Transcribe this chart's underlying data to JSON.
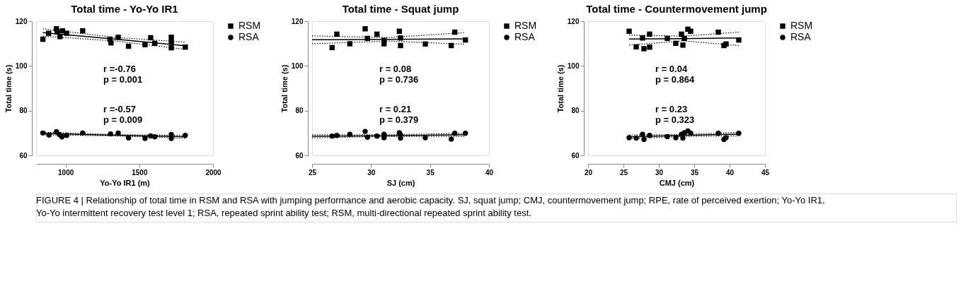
{
  "chart_data": [
    {
      "type": "scatter",
      "title": "Total time - Yo-Yo IR1",
      "xlabel": "Yo-Yo IR1 (m)",
      "ylabel": "Total time (s)",
      "xlim": [
        800,
        2000
      ],
      "xticks": [
        1000,
        1500,
        2000
      ],
      "ylim": [
        60,
        120
      ],
      "yticks": [
        60,
        80,
        100,
        120
      ],
      "grid": false,
      "legend": "right",
      "annotations": [
        "r =-0.76\np = 0.001",
        "r =-0.57\np = 0.009"
      ],
      "series": [
        {
          "name": "RSM",
          "color": "#000000",
          "marker": "square",
          "x": [
            846,
            885,
            938,
            944,
            962,
            979,
            1007,
            1116,
            1301,
            1308,
            1357,
            1427,
            1539,
            1577,
            1605,
            1717,
            1717,
            1717,
            1812
          ],
          "values": [
            111.9,
            114.6,
            116.6,
            115.2,
            113.1,
            115.7,
            114.6,
            115.7,
            111.9,
            110.3,
            112.8,
            108.8,
            109.5,
            112.6,
            110.1,
            112.8,
            110.6,
            108.1,
            108.4
          ]
        },
        {
          "name": "RSA",
          "color": "#000000",
          "marker": "circle",
          "x": [
            846,
            888,
            938,
            958,
            975,
            1007,
            1116,
            1305,
            1357,
            1427,
            1539,
            1577,
            1605,
            1717,
            1717,
            1812
          ],
          "values": [
            70.0,
            69.1,
            70.6,
            69.3,
            68.3,
            68.9,
            70.0,
            69.6,
            70.0,
            67.8,
            67.6,
            68.7,
            68.3,
            69.3,
            67.6,
            68.9
          ]
        },
        {
          "type": "line",
          "color": "#000000",
          "line_style": "solid",
          "x": [
            846,
            1329,
            1812
          ],
          "values": [
            114.9,
            112.0,
            109.0
          ]
        },
        {
          "type": "line",
          "color": "#000000",
          "line_style": "dotted",
          "x": [
            846,
            1329,
            1812
          ],
          "values": [
            113.3,
            111.2,
            107.4
          ]
        },
        {
          "type": "line",
          "color": "#000000",
          "line_style": "dotted",
          "x": [
            846,
            1329,
            1812
          ],
          "values": [
            116.6,
            112.8,
            110.6
          ]
        },
        {
          "type": "line",
          "color": "#000000",
          "line_style": "solid",
          "x": [
            846,
            1329,
            1812
          ],
          "values": [
            69.8,
            69.0,
            68.3
          ]
        },
        {
          "type": "line",
          "color": "#000000",
          "line_style": "dotted",
          "x": [
            846,
            1329,
            1812
          ],
          "values": [
            69.2,
            68.7,
            67.7
          ]
        },
        {
          "type": "line",
          "color": "#000000",
          "line_style": "dotted",
          "x": [
            846,
            1329,
            1812
          ],
          "values": [
            70.4,
            69.3,
            68.9
          ]
        }
      ]
    },
    {
      "type": "scatter",
      "title": "Total time - Squat jump",
      "xlabel": "SJ (cm)",
      "ylabel": "Total time (s)",
      "xlim": [
        25,
        40
      ],
      "xticks": [
        25,
        30,
        35,
        40
      ],
      "ylim": [
        60,
        120
      ],
      "yticks": [
        60,
        80,
        100,
        120
      ],
      "grid": false,
      "legend": "right",
      "annotations": [
        "r = 0.08\np = 0.736",
        "r = 0.21\np = 0.379"
      ],
      "series": [
        {
          "name": "RSM",
          "color": "#000000",
          "marker": "square",
          "x": [
            26.7,
            27.1,
            28.2,
            29.5,
            29.7,
            30.5,
            31.1,
            31.1,
            32.4,
            32.5,
            32.5,
            34.6,
            36.8,
            37.1,
            38.0
          ],
          "values": [
            108.2,
            114.2,
            109.9,
            116.6,
            112.3,
            114.2,
            111.4,
            109.9,
            115.5,
            112.5,
            109.1,
            109.8,
            109.1,
            115.1,
            111.6
          ]
        },
        {
          "name": "RSA",
          "color": "#000000",
          "marker": "circle",
          "x": [
            26.7,
            27.1,
            28.2,
            29.5,
            29.7,
            30.5,
            31.1,
            31.1,
            32.4,
            32.5,
            32.5,
            34.6,
            36.8,
            37.1,
            38.0
          ],
          "values": [
            68.6,
            68.9,
            69.4,
            70.7,
            68.1,
            68.6,
            69.4,
            67.9,
            70.1,
            69.2,
            67.7,
            67.9,
            67.3,
            69.9,
            69.9
          ]
        },
        {
          "type": "line",
          "color": "#000000",
          "line_style": "solid",
          "x": [
            25,
            31.5,
            38
          ],
          "values": [
            111.7,
            111.9,
            112.1
          ]
        },
        {
          "type": "line",
          "color": "#000000",
          "line_style": "dotted",
          "x": [
            25,
            31.5,
            38
          ],
          "values": [
            109.9,
            111.1,
            109.7
          ]
        },
        {
          "type": "line",
          "color": "#000000",
          "line_style": "dotted",
          "x": [
            25,
            31.5,
            38
          ],
          "values": [
            113.4,
            112.7,
            114.9
          ]
        },
        {
          "type": "line",
          "color": "#000000",
          "line_style": "solid",
          "x": [
            25,
            31.5,
            38
          ],
          "values": [
            68.5,
            68.8,
            69.2
          ]
        },
        {
          "type": "line",
          "color": "#000000",
          "line_style": "dotted",
          "x": [
            25,
            31.5,
            38
          ],
          "values": [
            67.8,
            68.5,
            68.5
          ]
        },
        {
          "type": "line",
          "color": "#000000",
          "line_style": "dotted",
          "x": [
            25,
            31.5,
            38
          ],
          "values": [
            69.2,
            69.2,
            69.9
          ]
        }
      ]
    },
    {
      "type": "scatter",
      "title": "Total time - Countermovement jump",
      "xlabel": "CMJ (cm)",
      "ylabel": "Total time (s)",
      "xlim": [
        20,
        45
      ],
      "xticks": [
        20,
        25,
        30,
        35,
        40,
        45
      ],
      "ylim": [
        60,
        120
      ],
      "yticks": [
        60,
        80,
        100,
        120
      ],
      "grid": false,
      "legend": "right",
      "annotations": [
        "r = 0.04\np = 0.864",
        "r = 0.23\np = 0.323"
      ],
      "series": [
        {
          "name": "RSM",
          "color": "#000000",
          "marker": "square",
          "x": [
            25.8,
            26.8,
            27.7,
            27.9,
            28.7,
            28.7,
            31.2,
            32.4,
            33.2,
            33.4,
            33.6,
            34.1,
            34.5,
            38.4,
            39.2,
            39.5,
            41.3
          ],
          "values": [
            115.5,
            108.5,
            112.5,
            107.7,
            114.2,
            108.4,
            112.3,
            110.1,
            114.2,
            109.3,
            112.3,
            116.4,
            115.5,
            115.1,
            109.1,
            109.8,
            111.6
          ]
        },
        {
          "name": "RSA",
          "color": "#000000",
          "marker": "circle",
          "x": [
            25.8,
            26.8,
            27.7,
            27.9,
            28.7,
            31.2,
            32.4,
            33.2,
            33.4,
            33.6,
            34.1,
            34.5,
            38.4,
            39.2,
            39.5,
            41.3
          ],
          "values": [
            67.9,
            67.7,
            69.4,
            67.1,
            68.9,
            68.4,
            67.9,
            69.4,
            67.7,
            70.1,
            70.9,
            69.9,
            69.9,
            67.1,
            67.9,
            69.9
          ]
        },
        {
          "type": "line",
          "color": "#000000",
          "line_style": "solid",
          "x": [
            25.8,
            33.5,
            41.3
          ],
          "values": [
            112.0,
            112.2,
            112.5
          ]
        },
        {
          "type": "line",
          "color": "#000000",
          "line_style": "dotted",
          "x": [
            25.8,
            33.5,
            41.3
          ],
          "values": [
            109.3,
            111.2,
            109.1
          ]
        },
        {
          "type": "line",
          "color": "#000000",
          "line_style": "dotted",
          "x": [
            25.8,
            33.5,
            41.3
          ],
          "values": [
            113.8,
            113.3,
            115.1
          ]
        },
        {
          "type": "line",
          "color": "#000000",
          "line_style": "solid",
          "x": [
            25.8,
            33.5,
            41.3
          ],
          "values": [
            68.3,
            68.9,
            69.5
          ]
        },
        {
          "type": "line",
          "color": "#000000",
          "line_style": "dotted",
          "x": [
            25.8,
            33.5,
            41.3
          ],
          "values": [
            67.5,
            68.5,
            68.7
          ]
        },
        {
          "type": "line",
          "color": "#000000",
          "line_style": "dotted",
          "x": [
            25.8,
            33.5,
            41.3
          ],
          "values": [
            69.1,
            69.3,
            70.3
          ]
        }
      ]
    },
    {
      "type": "other",
      "annotations": [
        "FIGURE 4 | Relationship of total time in RSM and RSA with jumping performance and aerobic capacity. SJ, squat jump; CMJ, countermovement jump; RPE, rate of perceived exertion; Yo-Yo IR1, Yo-Yo intermittent recovery test level 1; RSA, repeated sprint ability test; RSM, multi-directional repeated sprint ability test."
      ]
    }
  ]
}
